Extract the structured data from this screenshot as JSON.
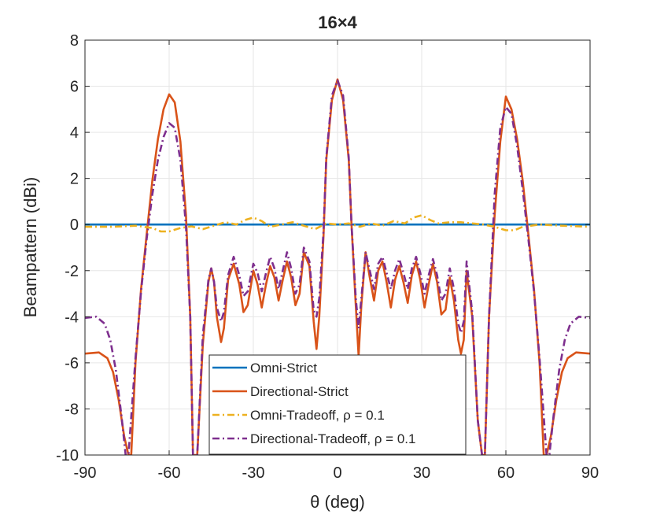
{
  "chart_data": {
    "type": "line",
    "title": "16×4",
    "xlabel": "θ (deg)",
    "ylabel": "Beampattern (dBi)",
    "xlim": [
      -90,
      90
    ],
    "ylim": [
      -10,
      8
    ],
    "xticks": [
      -90,
      -60,
      -30,
      0,
      30,
      60,
      90
    ],
    "yticks": [
      -10,
      -8,
      -6,
      -4,
      -2,
      0,
      2,
      4,
      6,
      8
    ],
    "grid": true,
    "legend_position": "bottom-center",
    "series": [
      {
        "name": "Omni-Strict",
        "color": "#0072BD",
        "style": "solid",
        "x": [
          -90,
          90
        ],
        "y": [
          0,
          0
        ]
      },
      {
        "name": "Directional-Strict",
        "color": "#D95319",
        "style": "solid",
        "x": [
          -90,
          -85,
          -82,
          -80,
          -78,
          -76,
          -74.5,
          -73.5,
          -72,
          -70,
          -68,
          -66,
          -64,
          -62,
          -60,
          -58,
          -56,
          -54,
          -52.5,
          -51.5,
          -50,
          -48,
          -46,
          -45,
          -44,
          -43,
          -41.5,
          -40.5,
          -39,
          -37,
          -35,
          -33.5,
          -32,
          -30,
          -28.5,
          -27,
          -25.5,
          -24,
          -22.5,
          -21,
          -19.5,
          -18,
          -16.5,
          -15,
          -13.5,
          -12,
          -10,
          -8.5,
          -7.5,
          -6.5,
          -5,
          -4,
          -2,
          0,
          2,
          4,
          5,
          6.5,
          7.5,
          8.5,
          10,
          11.5,
          13,
          14.5,
          16,
          17.5,
          19,
          20.5,
          22,
          23.5,
          25,
          26.5,
          28,
          29.5,
          31,
          32.5,
          34,
          35.5,
          37,
          38.5,
          40,
          41.5,
          43,
          44,
          45,
          46,
          48,
          50,
          51.5,
          52.5,
          54,
          56,
          58,
          60,
          62,
          64,
          66,
          68,
          70,
          72,
          73.5,
          74.5,
          76,
          78,
          80,
          82,
          85,
          90
        ],
        "y": [
          -5.6,
          -5.55,
          -5.8,
          -6.4,
          -7.6,
          -9.2,
          -10,
          -10,
          -6.0,
          -2.8,
          -0.4,
          1.9,
          3.7,
          5.0,
          5.65,
          5.3,
          3.6,
          0.4,
          -4,
          -10,
          -10,
          -5.2,
          -2.5,
          -1.9,
          -2.5,
          -4.0,
          -5.1,
          -4.5,
          -2.4,
          -1.7,
          -2.6,
          -3.8,
          -3.5,
          -2.0,
          -2.6,
          -3.6,
          -2.6,
          -1.8,
          -2.3,
          -3.3,
          -2.4,
          -1.6,
          -2.3,
          -3.5,
          -3.0,
          -1.2,
          -1.8,
          -4.2,
          -5.4,
          -4.0,
          -0.5,
          2.8,
          5.4,
          6.3,
          5.4,
          2.8,
          0.0,
          -3.5,
          -5.7,
          -3.5,
          -1.2,
          -2.3,
          -3.3,
          -2.0,
          -1.6,
          -2.5,
          -3.6,
          -2.4,
          -1.8,
          -2.5,
          -3.4,
          -2.2,
          -1.6,
          -2.4,
          -3.6,
          -2.6,
          -1.7,
          -2.5,
          -3.9,
          -3.7,
          -2.3,
          -3.3,
          -5.0,
          -5.6,
          -5.0,
          -2.0,
          -4.0,
          -8.5,
          -10,
          -10,
          -4,
          0.4,
          3.6,
          5.55,
          5.0,
          3.7,
          1.9,
          -0.4,
          -2.8,
          -6.0,
          -10,
          -10,
          -9.2,
          -7.6,
          -6.4,
          -5.8,
          -5.55,
          -5.6
        ]
      },
      {
        "name": "Omni-Tradeoff, ρ = 0.1",
        "color": "#EDB120",
        "style": "dashdot",
        "x": [
          -90,
          -80,
          -72,
          -66,
          -63,
          -60,
          -56,
          -52,
          -48,
          -44,
          -40,
          -36,
          -33,
          -30,
          -27,
          -24,
          -20,
          -16,
          -12,
          -8,
          -4,
          0,
          4,
          8,
          12,
          16,
          20,
          24,
          27,
          30,
          33,
          36,
          40,
          44,
          48,
          52,
          56,
          60,
          63,
          66,
          72,
          80,
          90
        ],
        "y": [
          -0.1,
          -0.1,
          -0.05,
          -0.15,
          -0.3,
          -0.3,
          -0.15,
          -0.08,
          -0.2,
          -0.05,
          0.1,
          0.0,
          0.2,
          0.3,
          0.15,
          -0.1,
          0.0,
          0.1,
          -0.05,
          -0.2,
          0.05,
          0.0,
          0.05,
          -0.1,
          0.05,
          -0.05,
          0.15,
          0.05,
          0.3,
          0.4,
          0.2,
          0.05,
          0.1,
          0.1,
          0.05,
          0.0,
          -0.1,
          -0.25,
          -0.25,
          -0.1,
          0.0,
          -0.05,
          -0.1
        ]
      },
      {
        "name": "Directional-Tradeoff, ρ = 0.1",
        "color": "#7E2F8E",
        "style": "dashdot",
        "x": [
          -90,
          -86,
          -83,
          -81,
          -79,
          -77,
          -75.5,
          -74.5,
          -72,
          -70,
          -68,
          -66,
          -64,
          -62,
          -60,
          -58,
          -56,
          -54,
          -52.5,
          -51.5,
          -50,
          -48,
          -46,
          -45,
          -44,
          -43,
          -41.5,
          -40.5,
          -39,
          -37,
          -35,
          -33.5,
          -32,
          -30,
          -28.5,
          -27,
          -25.5,
          -24,
          -22.5,
          -21,
          -19.5,
          -18,
          -16.5,
          -15,
          -13.5,
          -12,
          -10,
          -8.5,
          -7.5,
          -6.5,
          -5,
          -4,
          -2,
          0,
          2,
          4,
          5,
          6.5,
          7.5,
          8.5,
          10,
          11.5,
          13,
          14.5,
          16,
          17.5,
          19,
          20.5,
          22,
          23.5,
          25,
          26.5,
          28,
          29.5,
          31,
          32.5,
          34,
          35.5,
          37,
          38.5,
          40,
          41.5,
          43,
          44,
          45,
          46,
          48,
          50,
          51.5,
          52.5,
          54,
          56,
          58,
          60,
          62,
          64,
          66,
          68,
          70,
          72,
          74.5,
          75.5,
          77,
          79,
          81,
          83,
          86,
          90
        ],
        "y": [
          -4.05,
          -4.0,
          -4.3,
          -5.0,
          -6.3,
          -8.3,
          -10,
          -10,
          -5.8,
          -2.9,
          -0.6,
          1.3,
          2.8,
          3.8,
          4.4,
          4.2,
          2.8,
          -0.1,
          -4,
          -10,
          -10,
          -4.8,
          -2.4,
          -1.9,
          -2.5,
          -3.6,
          -4.2,
          -3.8,
          -2.2,
          -1.4,
          -2.2,
          -3.1,
          -2.9,
          -1.7,
          -2.1,
          -2.9,
          -2.1,
          -1.4,
          -1.9,
          -2.8,
          -2.0,
          -1.2,
          -1.9,
          -3.0,
          -2.6,
          -1.0,
          -1.6,
          -3.7,
          -4.0,
          -3.2,
          -0.3,
          2.9,
          5.6,
          6.25,
          5.6,
          2.9,
          0.0,
          -3.2,
          -4.5,
          -3.2,
          -1.2,
          -2.0,
          -2.8,
          -1.7,
          -1.4,
          -2.1,
          -2.8,
          -2.0,
          -1.5,
          -2.1,
          -2.8,
          -1.9,
          -1.4,
          -2.1,
          -3.0,
          -2.2,
          -1.5,
          -2.2,
          -3.3,
          -3.0,
          -1.9,
          -2.8,
          -4.3,
          -4.7,
          -4.2,
          -1.6,
          -3.8,
          -8.5,
          -10,
          -10,
          -4,
          1.3,
          4.2,
          5.1,
          4.8,
          3.4,
          1.5,
          -0.6,
          -2.9,
          -5.8,
          -10,
          -10,
          -8.3,
          -6.3,
          -5.0,
          -4.3,
          -4.0,
          -4.05
        ]
      }
    ]
  }
}
